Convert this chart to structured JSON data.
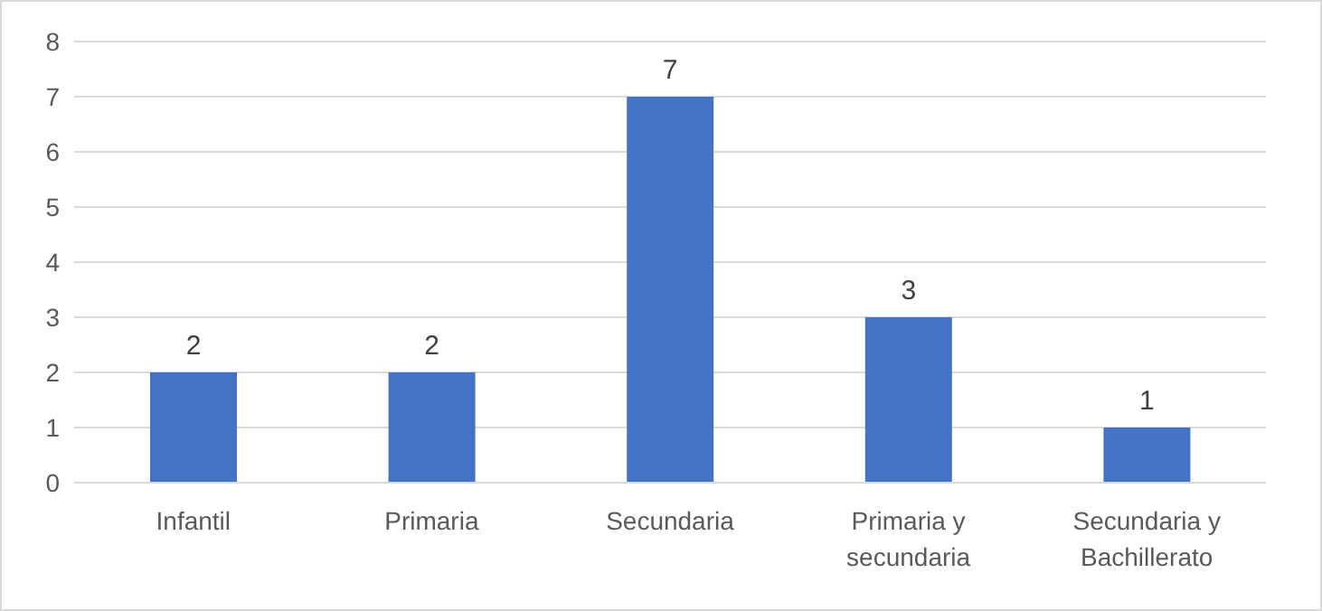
{
  "chart_data": {
    "type": "bar",
    "categories": [
      "Infantil",
      "Primaria",
      "Secundaria",
      "Primaria y secundaria",
      "Secundaria y Bachillerato"
    ],
    "values": [
      2,
      2,
      7,
      3,
      1
    ],
    "color": "#4472c4",
    "ylim": [
      0,
      8
    ],
    "yticks": [
      0,
      1,
      2,
      3,
      4,
      5,
      6,
      7,
      8
    ],
    "grid": "y",
    "data_labels": true,
    "legend": false
  }
}
